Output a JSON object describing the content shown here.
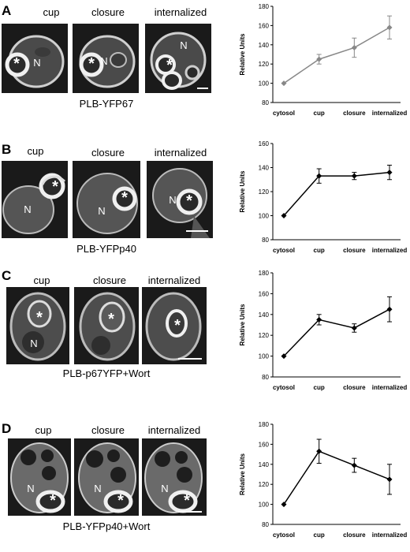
{
  "panels": [
    {
      "letter": "A",
      "labels": [
        "cup",
        "closure",
        "internalized"
      ],
      "caption": "PLB-YFP67",
      "chart": {
        "type": "line",
        "categories": [
          "cytosol",
          "cup",
          "closure",
          "internalized"
        ],
        "values": [
          100,
          125,
          137,
          158
        ],
        "errors": [
          0,
          5,
          10,
          12
        ],
        "ylabel": "Relative Units",
        "ylim": [
          80,
          180
        ],
        "yticks": [
          80,
          100,
          120,
          140,
          160,
          180
        ],
        "color": "#888888"
      }
    },
    {
      "letter": "B",
      "labels": [
        "cup",
        "closure",
        "internalized"
      ],
      "caption": "PLB-YFPp40",
      "chart": {
        "type": "line",
        "categories": [
          "cytosol",
          "cup",
          "closure",
          "internalized"
        ],
        "values": [
          100,
          133,
          133,
          136
        ],
        "errors": [
          0,
          6,
          3,
          6
        ],
        "ylabel": "Relative Units",
        "ylim": [
          80,
          160
        ],
        "yticks": [
          80,
          100,
          120,
          140,
          160
        ],
        "color": "#000000"
      }
    },
    {
      "letter": "C",
      "labels": [
        "cup",
        "closure",
        "internalized"
      ],
      "caption": "PLB-p67YFP+Wort",
      "chart": {
        "type": "line",
        "categories": [
          "cytosol",
          "cup",
          "closure",
          "internalized"
        ],
        "values": [
          100,
          135,
          127,
          145
        ],
        "errors": [
          0,
          5,
          4,
          12
        ],
        "ylabel": "Relative Units",
        "ylim": [
          80,
          180
        ],
        "yticks": [
          80,
          100,
          120,
          140,
          160,
          180
        ],
        "color": "#000000"
      }
    },
    {
      "letter": "D",
      "labels": [
        "cup",
        "closure",
        "internalized"
      ],
      "caption": "PLB-YFPp40+Wort",
      "chart": {
        "type": "line",
        "categories": [
          "cytosol",
          "cup",
          "closure",
          "internalized"
        ],
        "values": [
          100,
          153,
          139,
          125
        ],
        "errors": [
          0,
          12,
          7,
          15
        ],
        "ylabel": "Relative Units",
        "ylim": [
          80,
          180
        ],
        "yticks": [
          80,
          100,
          120,
          140,
          160,
          180
        ],
        "color": "#000000"
      }
    }
  ],
  "micro_marks": {
    "star": "*",
    "nucleus": "N"
  }
}
